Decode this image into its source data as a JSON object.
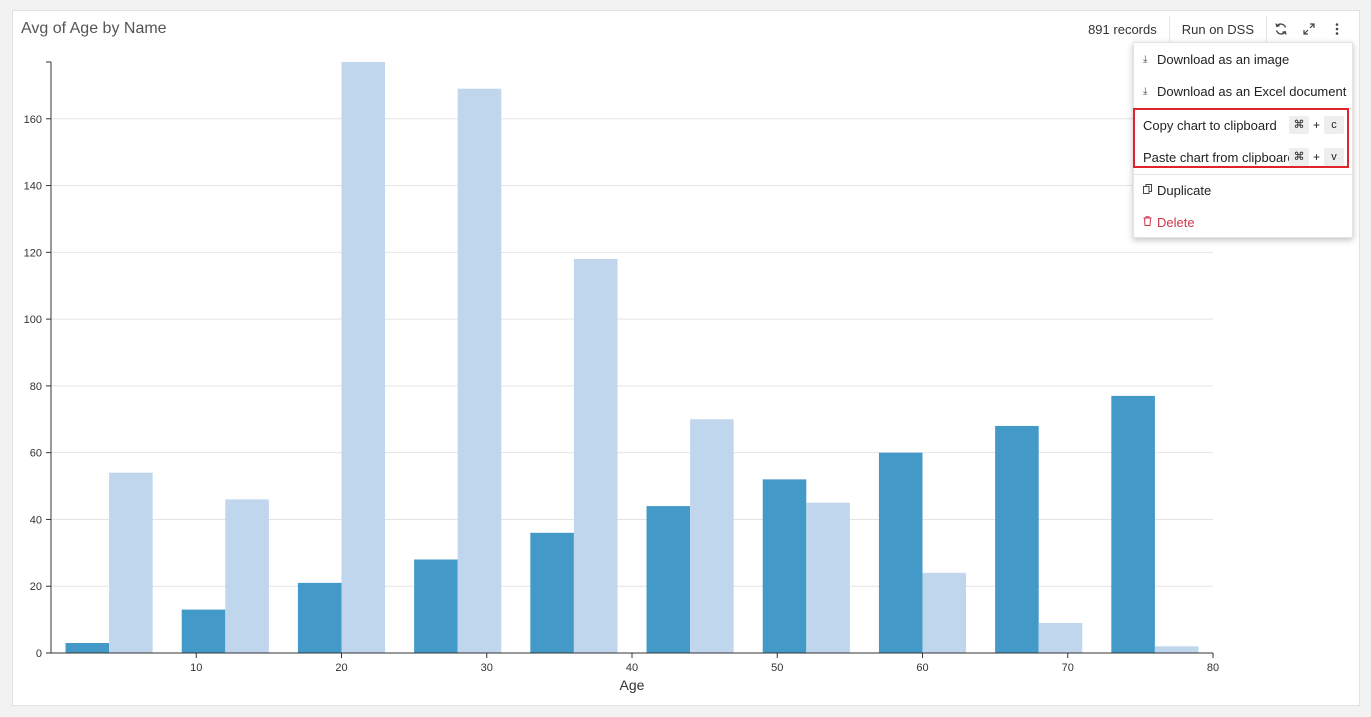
{
  "header": {
    "title": "Avg of Age by Name",
    "records": "891 records",
    "run_label": "Run on DSS",
    "refresh_icon": "refresh-icon",
    "expand_icon": "expand-icon",
    "more_icon": "more-vertical-icon"
  },
  "menu": {
    "items": [
      {
        "label": "Download as an image",
        "icon": "download-icon"
      },
      {
        "label": "Download as an Excel document",
        "icon": "download-icon"
      },
      {
        "label": "Copy chart to clipboard",
        "icon": "",
        "shortcut": [
          "⌘",
          "+",
          "c"
        ]
      },
      {
        "label": "Paste chart from clipboard",
        "icon": "",
        "shortcut": [
          "⌘",
          "+",
          "v"
        ]
      },
      {
        "label": "Duplicate",
        "icon": "duplicate-icon"
      },
      {
        "label": "Delete",
        "icon": "trash-icon"
      }
    ]
  },
  "colors": {
    "dark": "#4399c7",
    "light": "#c0d6ec",
    "delete": "#d0354b",
    "highlight": "#e0242b"
  },
  "chart_data": {
    "type": "bar",
    "title": "Avg of Age by Name",
    "xlabel": "Age",
    "ylabel": "",
    "xlim": [
      0,
      80
    ],
    "ylim": [
      0,
      177
    ],
    "xticks": [
      10,
      20,
      30,
      40,
      50,
      60,
      70,
      80
    ],
    "yticks": [
      0,
      20,
      40,
      60,
      80,
      100,
      120,
      140,
      160
    ],
    "grid": true,
    "series": [
      {
        "values": [
          {
            "x0": 1,
            "x1": 4,
            "y": 3
          },
          {
            "x0": 9,
            "x1": 12,
            "y": 13
          },
          {
            "x0": 17,
            "x1": 20,
            "y": 21
          },
          {
            "x0": 25,
            "x1": 28,
            "y": 28
          },
          {
            "x0": 33,
            "x1": 36,
            "y": 36
          },
          {
            "x0": 41,
            "x1": 44,
            "y": 44
          },
          {
            "x0": 49,
            "x1": 52,
            "y": 52
          },
          {
            "x0": 57,
            "x1": 60,
            "y": 60
          },
          {
            "x0": 65,
            "x1": 68,
            "y": 68
          },
          {
            "x0": 73,
            "x1": 76,
            "y": 77
          }
        ]
      },
      {
        "values": [
          {
            "x0": 4,
            "x1": 7,
            "y": 54
          },
          {
            "x0": 12,
            "x1": 15,
            "y": 46
          },
          {
            "x0": 20,
            "x1": 23,
            "y": 177
          },
          {
            "x0": 28,
            "x1": 31,
            "y": 169
          },
          {
            "x0": 36,
            "x1": 39,
            "y": 118
          },
          {
            "x0": 44,
            "x1": 47,
            "y": 70
          },
          {
            "x0": 52,
            "x1": 55,
            "y": 45
          },
          {
            "x0": 60,
            "x1": 63,
            "y": 24
          },
          {
            "x0": 68,
            "x1": 71,
            "y": 9
          },
          {
            "x0": 76,
            "x1": 79,
            "y": 2
          }
        ]
      }
    ]
  }
}
